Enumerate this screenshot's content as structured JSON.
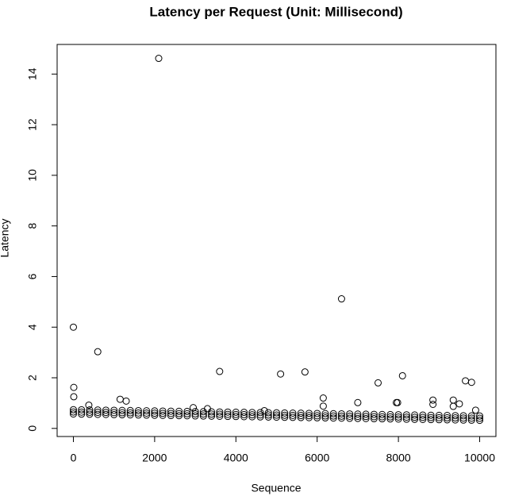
{
  "chart_data": {
    "type": "scatter",
    "title": "Latency per Request (Unit: Millisecond)",
    "x_label": "Sequence",
    "y_label": "Latency",
    "xlim": [
      -400,
      10400
    ],
    "ylim": [
      -0.32,
      15.17
    ],
    "xticks": [
      0,
      2000,
      4000,
      6000,
      8000,
      10000
    ],
    "yticks": [
      0,
      2,
      4,
      6,
      8,
      10,
      12,
      14
    ],
    "color": "#000000",
    "x": [
      0,
      0,
      0,
      200,
      200,
      200,
      400,
      400,
      400,
      600,
      600,
      600,
      800,
      800,
      800,
      1000,
      1000,
      1000,
      1200,
      1200,
      1200,
      1400,
      1400,
      1400,
      1600,
      1600,
      1600,
      1800,
      1800,
      1800,
      2000,
      2000,
      2000,
      2200,
      2200,
      2200,
      2400,
      2400,
      2400,
      2600,
      2600,
      2600,
      2800,
      2800,
      2800,
      3000,
      3000,
      3000,
      3200,
      3200,
      3200,
      3400,
      3400,
      3400,
      3600,
      3600,
      3600,
      3800,
      3800,
      3800,
      4000,
      4000,
      4000,
      4200,
      4200,
      4200,
      4400,
      4400,
      4400,
      4600,
      4600,
      4600,
      4800,
      4800,
      4800,
      5000,
      5000,
      5000,
      5200,
      5200,
      5200,
      5400,
      5400,
      5400,
      5600,
      5600,
      5600,
      5800,
      5800,
      5800,
      6000,
      6000,
      6000,
      6200,
      6200,
      6200,
      6400,
      6400,
      6400,
      6600,
      6600,
      6600,
      6800,
      6800,
      6800,
      7000,
      7000,
      7000,
      7200,
      7200,
      7200,
      7400,
      7400,
      7400,
      7600,
      7600,
      7600,
      7800,
      7800,
      7800,
      8000,
      8000,
      8000,
      8200,
      8200,
      8200,
      8400,
      8400,
      8400,
      8600,
      8600,
      8600,
      8800,
      8800,
      8800,
      9000,
      9000,
      9000,
      9200,
      9200,
      9200,
      9400,
      9400,
      9400,
      9600,
      9600,
      9600,
      9800,
      9800,
      9800,
      10000,
      10000,
      10000,
      0,
      10,
      10,
      600,
      2100,
      1150,
      1300,
      3600,
      5100,
      5700,
      6600,
      6150,
      6150,
      7000,
      7500,
      7950,
      7980,
      8100,
      8850,
      8850,
      9350,
      9350,
      9500,
      9650,
      9800,
      9900,
      380,
      2950,
      3300,
      4700
    ],
    "y": [
      0.74,
      0.65,
      0.57,
      0.735,
      0.645,
      0.565,
      0.73,
      0.64,
      0.56,
      0.725,
      0.635,
      0.555,
      0.72,
      0.63,
      0.55,
      0.715,
      0.625,
      0.545,
      0.71,
      0.62,
      0.54,
      0.705,
      0.615,
      0.535,
      0.7,
      0.61,
      0.53,
      0.695,
      0.605,
      0.525,
      0.69,
      0.6,
      0.52,
      0.685,
      0.595,
      0.515,
      0.68,
      0.59,
      0.51,
      0.675,
      0.585,
      0.505,
      0.67,
      0.58,
      0.5,
      0.665,
      0.575,
      0.495,
      0.66,
      0.57,
      0.49,
      0.655,
      0.565,
      0.485,
      0.65,
      0.56,
      0.48,
      0.645,
      0.555,
      0.475,
      0.64,
      0.55,
      0.47,
      0.635,
      0.545,
      0.465,
      0.63,
      0.54,
      0.46,
      0.625,
      0.535,
      0.455,
      0.62,
      0.53,
      0.45,
      0.615,
      0.525,
      0.445,
      0.61,
      0.52,
      0.44,
      0.605,
      0.515,
      0.435,
      0.6,
      0.51,
      0.43,
      0.595,
      0.505,
      0.425,
      0.59,
      0.5,
      0.42,
      0.585,
      0.495,
      0.415,
      0.58,
      0.49,
      0.41,
      0.575,
      0.485,
      0.405,
      0.57,
      0.48,
      0.4,
      0.565,
      0.475,
      0.395,
      0.56,
      0.47,
      0.39,
      0.555,
      0.465,
      0.385,
      0.55,
      0.46,
      0.38,
      0.545,
      0.455,
      0.375,
      0.54,
      0.45,
      0.37,
      0.535,
      0.445,
      0.365,
      0.53,
      0.44,
      0.36,
      0.525,
      0.435,
      0.355,
      0.52,
      0.43,
      0.35,
      0.515,
      0.425,
      0.345,
      0.51,
      0.42,
      0.34,
      0.505,
      0.415,
      0.335,
      0.5,
      0.41,
      0.33,
      0.495,
      0.405,
      0.325,
      0.49,
      0.4,
      0.32,
      4.0,
      1.62,
      1.25,
      3.03,
      14.62,
      1.15,
      1.08,
      2.25,
      2.15,
      2.23,
      5.12,
      1.2,
      0.88,
      1.02,
      1.8,
      1.02,
      1.02,
      2.08,
      1.12,
      0.95,
      1.12,
      0.87,
      0.97,
      1.88,
      1.82,
      0.72,
      0.92,
      0.82,
      0.78,
      0.7
    ]
  }
}
